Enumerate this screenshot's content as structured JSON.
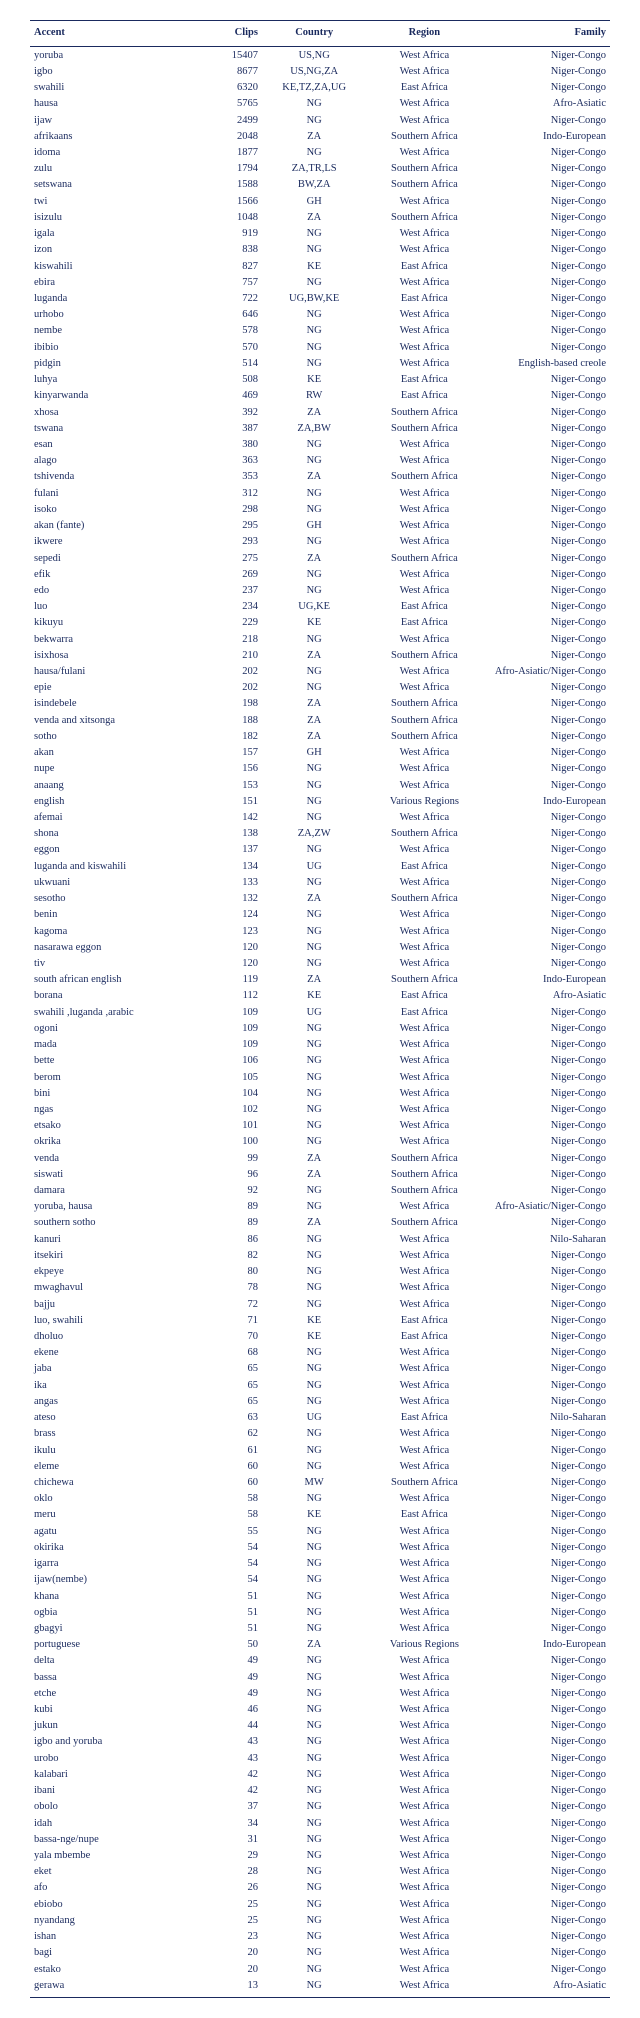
{
  "table": {
    "text_color": "#1a2a5e",
    "background_color": "#ffffff",
    "font_family": "Times New Roman",
    "font_size_pt": 8,
    "rule_color": "#1a2a5e",
    "columns": [
      {
        "key": "accent",
        "label": "Accent",
        "align": "left"
      },
      {
        "key": "clips",
        "label": "Clips",
        "align": "right"
      },
      {
        "key": "country",
        "label": "Country",
        "align": "center"
      },
      {
        "key": "region",
        "label": "Region",
        "align": "center"
      },
      {
        "key": "family",
        "label": "Family",
        "align": "right"
      }
    ],
    "rows": [
      {
        "accent": "yoruba",
        "clips": 15407,
        "country": "US,NG",
        "region": "West Africa",
        "family": "Niger-Congo"
      },
      {
        "accent": "igbo",
        "clips": 8677,
        "country": "US,NG,ZA",
        "region": "West Africa",
        "family": "Niger-Congo"
      },
      {
        "accent": "swahili",
        "clips": 6320,
        "country": "KE,TZ,ZA,UG",
        "region": "East Africa",
        "family": "Niger-Congo"
      },
      {
        "accent": "hausa",
        "clips": 5765,
        "country": "NG",
        "region": "West Africa",
        "family": "Afro-Asiatic"
      },
      {
        "accent": "ijaw",
        "clips": 2499,
        "country": "NG",
        "region": "West Africa",
        "family": "Niger-Congo"
      },
      {
        "accent": "afrikaans",
        "clips": 2048,
        "country": "ZA",
        "region": "Southern Africa",
        "family": "Indo-European"
      },
      {
        "accent": "idoma",
        "clips": 1877,
        "country": "NG",
        "region": "West Africa",
        "family": "Niger-Congo"
      },
      {
        "accent": "zulu",
        "clips": 1794,
        "country": "ZA,TR,LS",
        "region": "Southern Africa",
        "family": "Niger-Congo"
      },
      {
        "accent": "setswana",
        "clips": 1588,
        "country": "BW,ZA",
        "region": "Southern Africa",
        "family": "Niger-Congo"
      },
      {
        "accent": "twi",
        "clips": 1566,
        "country": "GH",
        "region": "West Africa",
        "family": "Niger-Congo"
      },
      {
        "accent": "isizulu",
        "clips": 1048,
        "country": "ZA",
        "region": "Southern Africa",
        "family": "Niger-Congo"
      },
      {
        "accent": "igala",
        "clips": 919,
        "country": "NG",
        "region": "West Africa",
        "family": "Niger-Congo"
      },
      {
        "accent": "izon",
        "clips": 838,
        "country": "NG",
        "region": "West Africa",
        "family": "Niger-Congo"
      },
      {
        "accent": "kiswahili",
        "clips": 827,
        "country": "KE",
        "region": "East Africa",
        "family": "Niger-Congo"
      },
      {
        "accent": "ebira",
        "clips": 757,
        "country": "NG",
        "region": "West Africa",
        "family": "Niger-Congo"
      },
      {
        "accent": "luganda",
        "clips": 722,
        "country": "UG,BW,KE",
        "region": "East Africa",
        "family": "Niger-Congo"
      },
      {
        "accent": "urhobo",
        "clips": 646,
        "country": "NG",
        "region": "West Africa",
        "family": "Niger-Congo"
      },
      {
        "accent": "nembe",
        "clips": 578,
        "country": "NG",
        "region": "West Africa",
        "family": "Niger-Congo"
      },
      {
        "accent": "ibibio",
        "clips": 570,
        "country": "NG",
        "region": "West Africa",
        "family": "Niger-Congo"
      },
      {
        "accent": "pidgin",
        "clips": 514,
        "country": "NG",
        "region": "West Africa",
        "family": "English-based creole"
      },
      {
        "accent": "luhya",
        "clips": 508,
        "country": "KE",
        "region": "East Africa",
        "family": "Niger-Congo"
      },
      {
        "accent": "kinyarwanda",
        "clips": 469,
        "country": "RW",
        "region": "East Africa",
        "family": "Niger-Congo"
      },
      {
        "accent": "xhosa",
        "clips": 392,
        "country": "ZA",
        "region": "Southern Africa",
        "family": "Niger-Congo"
      },
      {
        "accent": "tswana",
        "clips": 387,
        "country": "ZA,BW",
        "region": "Southern Africa",
        "family": "Niger-Congo"
      },
      {
        "accent": "esan",
        "clips": 380,
        "country": "NG",
        "region": "West Africa",
        "family": "Niger-Congo"
      },
      {
        "accent": "alago",
        "clips": 363,
        "country": "NG",
        "region": "West Africa",
        "family": "Niger-Congo"
      },
      {
        "accent": "tshivenda",
        "clips": 353,
        "country": "ZA",
        "region": "Southern Africa",
        "family": "Niger-Congo"
      },
      {
        "accent": "fulani",
        "clips": 312,
        "country": "NG",
        "region": "West Africa",
        "family": "Niger-Congo"
      },
      {
        "accent": "isoko",
        "clips": 298,
        "country": "NG",
        "region": "West Africa",
        "family": "Niger-Congo"
      },
      {
        "accent": "akan (fante)",
        "clips": 295,
        "country": "GH",
        "region": "West Africa",
        "family": "Niger-Congo"
      },
      {
        "accent": "ikwere",
        "clips": 293,
        "country": "NG",
        "region": "West Africa",
        "family": "Niger-Congo"
      },
      {
        "accent": "sepedi",
        "clips": 275,
        "country": "ZA",
        "region": "Southern Africa",
        "family": "Niger-Congo"
      },
      {
        "accent": "efik",
        "clips": 269,
        "country": "NG",
        "region": "West Africa",
        "family": "Niger-Congo"
      },
      {
        "accent": "edo",
        "clips": 237,
        "country": "NG",
        "region": "West Africa",
        "family": "Niger-Congo"
      },
      {
        "accent": "luo",
        "clips": 234,
        "country": "UG,KE",
        "region": "East Africa",
        "family": "Niger-Congo"
      },
      {
        "accent": "kikuyu",
        "clips": 229,
        "country": "KE",
        "region": "East Africa",
        "family": "Niger-Congo"
      },
      {
        "accent": "bekwarra",
        "clips": 218,
        "country": "NG",
        "region": "West Africa",
        "family": "Niger-Congo"
      },
      {
        "accent": "isixhosa",
        "clips": 210,
        "country": "ZA",
        "region": "Southern Africa",
        "family": "Niger-Congo"
      },
      {
        "accent": "hausa/fulani",
        "clips": 202,
        "country": "NG",
        "region": "West Africa",
        "family": "Afro-Asiatic/Niger-Congo"
      },
      {
        "accent": "epie",
        "clips": 202,
        "country": "NG",
        "region": "West Africa",
        "family": "Niger-Congo"
      },
      {
        "accent": "isindebele",
        "clips": 198,
        "country": "ZA",
        "region": "Southern Africa",
        "family": "Niger-Congo"
      },
      {
        "accent": "venda and xitsonga",
        "clips": 188,
        "country": "ZA",
        "region": "Southern Africa",
        "family": "Niger-Congo"
      },
      {
        "accent": "sotho",
        "clips": 182,
        "country": "ZA",
        "region": "Southern Africa",
        "family": "Niger-Congo"
      },
      {
        "accent": "akan",
        "clips": 157,
        "country": "GH",
        "region": "West Africa",
        "family": "Niger-Congo"
      },
      {
        "accent": "nupe",
        "clips": 156,
        "country": "NG",
        "region": "West Africa",
        "family": "Niger-Congo"
      },
      {
        "accent": "anaang",
        "clips": 153,
        "country": "NG",
        "region": "West Africa",
        "family": "Niger-Congo"
      },
      {
        "accent": "english",
        "clips": 151,
        "country": "NG",
        "region": "Various Regions",
        "family": "Indo-European"
      },
      {
        "accent": "afemai",
        "clips": 142,
        "country": "NG",
        "region": "West Africa",
        "family": "Niger-Congo"
      },
      {
        "accent": "shona",
        "clips": 138,
        "country": "ZA,ZW",
        "region": "Southern Africa",
        "family": "Niger-Congo"
      },
      {
        "accent": "eggon",
        "clips": 137,
        "country": "NG",
        "region": "West Africa",
        "family": "Niger-Congo"
      },
      {
        "accent": "luganda and kiswahili",
        "clips": 134,
        "country": "UG",
        "region": "East Africa",
        "family": "Niger-Congo"
      },
      {
        "accent": "ukwuani",
        "clips": 133,
        "country": "NG",
        "region": "West Africa",
        "family": "Niger-Congo"
      },
      {
        "accent": "sesotho",
        "clips": 132,
        "country": "ZA",
        "region": "Southern Africa",
        "family": "Niger-Congo"
      },
      {
        "accent": "benin",
        "clips": 124,
        "country": "NG",
        "region": "West Africa",
        "family": "Niger-Congo"
      },
      {
        "accent": "kagoma",
        "clips": 123,
        "country": "NG",
        "region": "West Africa",
        "family": "Niger-Congo"
      },
      {
        "accent": "nasarawa eggon",
        "clips": 120,
        "country": "NG",
        "region": "West Africa",
        "family": "Niger-Congo"
      },
      {
        "accent": "tiv",
        "clips": 120,
        "country": "NG",
        "region": "West Africa",
        "family": "Niger-Congo"
      },
      {
        "accent": "south african english",
        "clips": 119,
        "country": "ZA",
        "region": "Southern Africa",
        "family": "Indo-European"
      },
      {
        "accent": "borana",
        "clips": 112,
        "country": "KE",
        "region": "East Africa",
        "family": "Afro-Asiatic"
      },
      {
        "accent": "swahili ,luganda ,arabic",
        "clips": 109,
        "country": "UG",
        "region": "East Africa",
        "family": "Niger-Congo"
      },
      {
        "accent": "ogoni",
        "clips": 109,
        "country": "NG",
        "region": "West Africa",
        "family": "Niger-Congo"
      },
      {
        "accent": "mada",
        "clips": 109,
        "country": "NG",
        "region": "West Africa",
        "family": "Niger-Congo"
      },
      {
        "accent": "bette",
        "clips": 106,
        "country": "NG",
        "region": "West Africa",
        "family": "Niger-Congo"
      },
      {
        "accent": "berom",
        "clips": 105,
        "country": "NG",
        "region": "West Africa",
        "family": "Niger-Congo"
      },
      {
        "accent": "bini",
        "clips": 104,
        "country": "NG",
        "region": "West Africa",
        "family": "Niger-Congo"
      },
      {
        "accent": "ngas",
        "clips": 102,
        "country": "NG",
        "region": "West Africa",
        "family": "Niger-Congo"
      },
      {
        "accent": "etsako",
        "clips": 101,
        "country": "NG",
        "region": "West Africa",
        "family": "Niger-Congo"
      },
      {
        "accent": "okrika",
        "clips": 100,
        "country": "NG",
        "region": "West Africa",
        "family": "Niger-Congo"
      },
      {
        "accent": "venda",
        "clips": 99,
        "country": "ZA",
        "region": "Southern Africa",
        "family": "Niger-Congo"
      },
      {
        "accent": "siswati",
        "clips": 96,
        "country": "ZA",
        "region": "Southern Africa",
        "family": "Niger-Congo"
      },
      {
        "accent": "damara",
        "clips": 92,
        "country": "NG",
        "region": "Southern Africa",
        "family": "Niger-Congo"
      },
      {
        "accent": "yoruba, hausa",
        "clips": 89,
        "country": "NG",
        "region": "West Africa",
        "family": "Afro-Asiatic/Niger-Congo"
      },
      {
        "accent": "southern sotho",
        "clips": 89,
        "country": "ZA",
        "region": "Southern Africa",
        "family": "Niger-Congo"
      },
      {
        "accent": "kanuri",
        "clips": 86,
        "country": "NG",
        "region": "West Africa",
        "family": "Nilo-Saharan"
      },
      {
        "accent": "itsekiri",
        "clips": 82,
        "country": "NG",
        "region": "West Africa",
        "family": "Niger-Congo"
      },
      {
        "accent": "ekpeye",
        "clips": 80,
        "country": "NG",
        "region": "West Africa",
        "family": "Niger-Congo"
      },
      {
        "accent": "mwaghavul",
        "clips": 78,
        "country": "NG",
        "region": "West Africa",
        "family": "Niger-Congo"
      },
      {
        "accent": "bajju",
        "clips": 72,
        "country": "NG",
        "region": "West Africa",
        "family": "Niger-Congo"
      },
      {
        "accent": "luo, swahili",
        "clips": 71,
        "country": "KE",
        "region": "East Africa",
        "family": "Niger-Congo"
      },
      {
        "accent": "dholuo",
        "clips": 70,
        "country": "KE",
        "region": "East Africa",
        "family": "Niger-Congo"
      },
      {
        "accent": "ekene",
        "clips": 68,
        "country": "NG",
        "region": "West Africa",
        "family": "Niger-Congo"
      },
      {
        "accent": "jaba",
        "clips": 65,
        "country": "NG",
        "region": "West Africa",
        "family": "Niger-Congo"
      },
      {
        "accent": "ika",
        "clips": 65,
        "country": "NG",
        "region": "West Africa",
        "family": "Niger-Congo"
      },
      {
        "accent": "angas",
        "clips": 65,
        "country": "NG",
        "region": "West Africa",
        "family": "Niger-Congo"
      },
      {
        "accent": "ateso",
        "clips": 63,
        "country": "UG",
        "region": "East Africa",
        "family": "Nilo-Saharan"
      },
      {
        "accent": "brass",
        "clips": 62,
        "country": "NG",
        "region": "West Africa",
        "family": "Niger-Congo"
      },
      {
        "accent": "ikulu",
        "clips": 61,
        "country": "NG",
        "region": "West Africa",
        "family": "Niger-Congo"
      },
      {
        "accent": "eleme",
        "clips": 60,
        "country": "NG",
        "region": "West Africa",
        "family": "Niger-Congo"
      },
      {
        "accent": "chichewa",
        "clips": 60,
        "country": "MW",
        "region": "Southern Africa",
        "family": "Niger-Congo"
      },
      {
        "accent": "oklo",
        "clips": 58,
        "country": "NG",
        "region": "West Africa",
        "family": "Niger-Congo"
      },
      {
        "accent": "meru",
        "clips": 58,
        "country": "KE",
        "region": "East Africa",
        "family": "Niger-Congo"
      },
      {
        "accent": "agatu",
        "clips": 55,
        "country": "NG",
        "region": "West Africa",
        "family": "Niger-Congo"
      },
      {
        "accent": "okirika",
        "clips": 54,
        "country": "NG",
        "region": "West Africa",
        "family": "Niger-Congo"
      },
      {
        "accent": "igarra",
        "clips": 54,
        "country": "NG",
        "region": "West Africa",
        "family": "Niger-Congo"
      },
      {
        "accent": "ijaw(nembe)",
        "clips": 54,
        "country": "NG",
        "region": "West Africa",
        "family": "Niger-Congo"
      },
      {
        "accent": "khana",
        "clips": 51,
        "country": "NG",
        "region": "West Africa",
        "family": "Niger-Congo"
      },
      {
        "accent": "ogbia",
        "clips": 51,
        "country": "NG",
        "region": "West Africa",
        "family": "Niger-Congo"
      },
      {
        "accent": "gbagyi",
        "clips": 51,
        "country": "NG",
        "region": "West Africa",
        "family": "Niger-Congo"
      },
      {
        "accent": "portuguese",
        "clips": 50,
        "country": "ZA",
        "region": "Various Regions",
        "family": "Indo-European"
      },
      {
        "accent": "delta",
        "clips": 49,
        "country": "NG",
        "region": "West Africa",
        "family": "Niger-Congo"
      },
      {
        "accent": "bassa",
        "clips": 49,
        "country": "NG",
        "region": "West Africa",
        "family": "Niger-Congo"
      },
      {
        "accent": "etche",
        "clips": 49,
        "country": "NG",
        "region": "West Africa",
        "family": "Niger-Congo"
      },
      {
        "accent": "kubi",
        "clips": 46,
        "country": "NG",
        "region": "West Africa",
        "family": "Niger-Congo"
      },
      {
        "accent": "jukun",
        "clips": 44,
        "country": "NG",
        "region": "West Africa",
        "family": "Niger-Congo"
      },
      {
        "accent": "igbo and yoruba",
        "clips": 43,
        "country": "NG",
        "region": "West Africa",
        "family": "Niger-Congo"
      },
      {
        "accent": "urobo",
        "clips": 43,
        "country": "NG",
        "region": "West Africa",
        "family": "Niger-Congo"
      },
      {
        "accent": "kalabari",
        "clips": 42,
        "country": "NG",
        "region": "West Africa",
        "family": "Niger-Congo"
      },
      {
        "accent": "ibani",
        "clips": 42,
        "country": "NG",
        "region": "West Africa",
        "family": "Niger-Congo"
      },
      {
        "accent": "obolo",
        "clips": 37,
        "country": "NG",
        "region": "West Africa",
        "family": "Niger-Congo"
      },
      {
        "accent": "idah",
        "clips": 34,
        "country": "NG",
        "region": "West Africa",
        "family": "Niger-Congo"
      },
      {
        "accent": "bassa-nge/nupe",
        "clips": 31,
        "country": "NG",
        "region": "West Africa",
        "family": "Niger-Congo"
      },
      {
        "accent": "yala mbembe",
        "clips": 29,
        "country": "NG",
        "region": "West Africa",
        "family": "Niger-Congo"
      },
      {
        "accent": "eket",
        "clips": 28,
        "country": "NG",
        "region": "West Africa",
        "family": "Niger-Congo"
      },
      {
        "accent": "afo",
        "clips": 26,
        "country": "NG",
        "region": "West Africa",
        "family": "Niger-Congo"
      },
      {
        "accent": "ebiobo",
        "clips": 25,
        "country": "NG",
        "region": "West Africa",
        "family": "Niger-Congo"
      },
      {
        "accent": "nyandang",
        "clips": 25,
        "country": "NG",
        "region": "West Africa",
        "family": "Niger-Congo"
      },
      {
        "accent": "ishan",
        "clips": 23,
        "country": "NG",
        "region": "West Africa",
        "family": "Niger-Congo"
      },
      {
        "accent": "bagi",
        "clips": 20,
        "country": "NG",
        "region": "West Africa",
        "family": "Niger-Congo"
      },
      {
        "accent": "estako",
        "clips": 20,
        "country": "NG",
        "region": "West Africa",
        "family": "Niger-Congo"
      },
      {
        "accent": "gerawa",
        "clips": 13,
        "country": "NG",
        "region": "West Africa",
        "family": "Afro-Asiatic"
      }
    ]
  }
}
